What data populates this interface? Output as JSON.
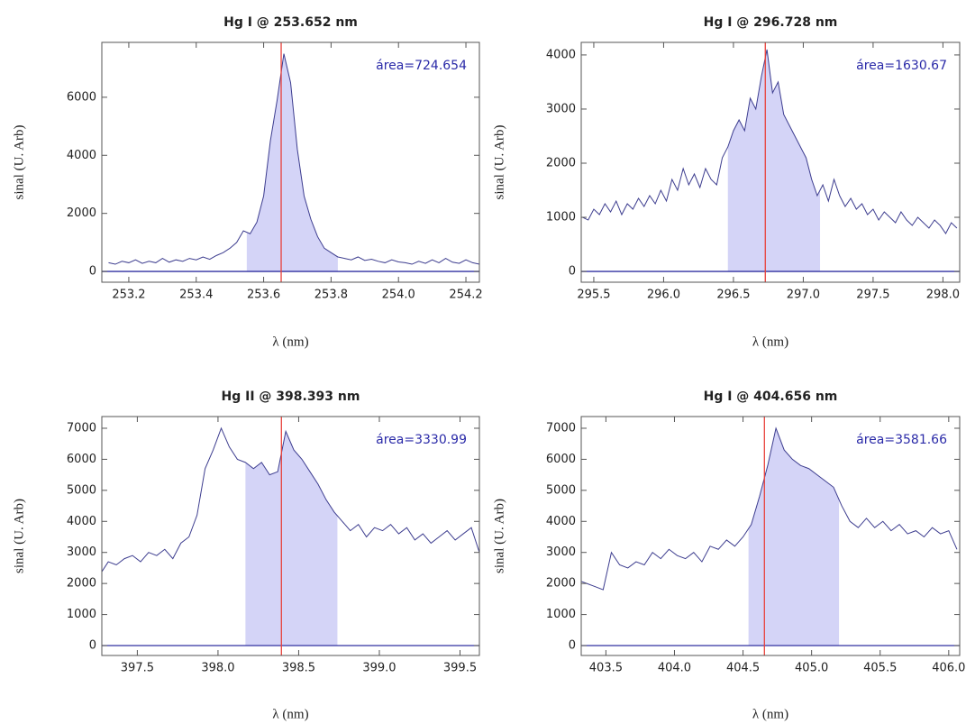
{
  "chart_data": [
    {
      "type": "line",
      "title": "Hg I @ 253.652 nm",
      "xlabel": "λ (nm)",
      "ylabel": "sinal (U. Arb)",
      "annotation": "área=724.654",
      "x": [
        253.14,
        253.16,
        253.18,
        253.2,
        253.22,
        253.24,
        253.26,
        253.28,
        253.3,
        253.32,
        253.34,
        253.36,
        253.38,
        253.4,
        253.42,
        253.44,
        253.46,
        253.48,
        253.5,
        253.52,
        253.54,
        253.56,
        253.58,
        253.6,
        253.62,
        253.64,
        253.66,
        253.68,
        253.7,
        253.72,
        253.74,
        253.76,
        253.78,
        253.8,
        253.82,
        253.84,
        253.86,
        253.88,
        253.9,
        253.92,
        253.94,
        253.96,
        253.98,
        254.0,
        254.02,
        254.04,
        254.06,
        254.08,
        254.1,
        254.12,
        254.14,
        254.16,
        254.18,
        254.2,
        254.22,
        254.24
      ],
      "values": [
        300,
        250,
        350,
        300,
        400,
        280,
        350,
        300,
        450,
        320,
        400,
        350,
        450,
        400,
        500,
        420,
        550,
        650,
        800,
        1000,
        1400,
        1300,
        1700,
        2600,
        4500,
        5900,
        7500,
        6500,
        4200,
        2600,
        1800,
        1200,
        800,
        650,
        500,
        450,
        400,
        500,
        380,
        420,
        350,
        300,
        400,
        330,
        300,
        250,
        350,
        280,
        400,
        300,
        450,
        320,
        280,
        400,
        300,
        250
      ],
      "fill_range": [
        253.55,
        253.82
      ],
      "vline": 253.652,
      "color": "#3d3d8f",
      "fill_color": "#d4d4f7",
      "vline_color": "#e8413b",
      "xlim": [
        253.12,
        254.24
      ],
      "ylim": [
        -370,
        7890
      ],
      "xticks": [
        253.2,
        253.4,
        253.6,
        253.8,
        {
          "value": 254,
          "label": "254.0"
        },
        254.2
      ],
      "yticks": [
        0,
        2000,
        4000,
        6000
      ]
    },
    {
      "type": "line",
      "title": "Hg I @ 296.728 nm",
      "xlabel": "λ (nm)",
      "ylabel": "sinal (U. Arb)",
      "annotation": "área=1630.67",
      "x": [
        295.42,
        295.46,
        295.5,
        295.54,
        295.58,
        295.62,
        295.66,
        295.7,
        295.74,
        295.78,
        295.82,
        295.86,
        295.9,
        295.94,
        295.98,
        296.02,
        296.06,
        296.1,
        296.14,
        296.18,
        296.22,
        296.26,
        296.3,
        296.34,
        296.38,
        296.42,
        296.46,
        296.5,
        296.54,
        296.58,
        296.62,
        296.66,
        296.7,
        296.74,
        296.78,
        296.82,
        296.86,
        296.9,
        296.94,
        296.98,
        297.02,
        297.06,
        297.1,
        297.14,
        297.18,
        297.22,
        297.26,
        297.3,
        297.34,
        297.38,
        297.42,
        297.46,
        297.5,
        297.54,
        297.58,
        297.62,
        297.66,
        297.7,
        297.74,
        297.78,
        297.82,
        297.86,
        297.9,
        297.94,
        297.98,
        298.02,
        298.06,
        298.1
      ],
      "values": [
        1000,
        950,
        1150,
        1050,
        1250,
        1100,
        1300,
        1050,
        1250,
        1150,
        1350,
        1200,
        1400,
        1250,
        1500,
        1300,
        1700,
        1500,
        1900,
        1600,
        1800,
        1550,
        1900,
        1700,
        1600,
        2100,
        2300,
        2600,
        2800,
        2600,
        3200,
        3000,
        3600,
        4100,
        3300,
        3500,
        2900,
        2700,
        2500,
        2300,
        2100,
        1700,
        1400,
        1600,
        1300,
        1700,
        1400,
        1200,
        1350,
        1150,
        1250,
        1050,
        1150,
        950,
        1100,
        1000,
        900,
        1100,
        950,
        850,
        1000,
        900,
        800,
        950,
        850,
        700,
        900,
        800
      ],
      "fill_range": [
        296.46,
        297.12
      ],
      "vline": 296.728,
      "color": "#3d3d8f",
      "fill_color": "#d4d4f7",
      "vline_color": "#e8413b",
      "xlim": [
        295.41,
        298.12
      ],
      "ylim": [
        -199,
        4232
      ],
      "xticks": [
        295.5,
        {
          "value": 296,
          "label": "296.0"
        },
        296.5,
        {
          "value": 297,
          "label": "297.0"
        },
        297.5,
        {
          "value": 298,
          "label": "298.0"
        }
      ],
      "yticks": [
        0,
        1000,
        2000,
        3000,
        4000
      ]
    },
    {
      "type": "line",
      "title": "Hg II @ 398.393 nm",
      "xlabel": "λ (nm)",
      "ylabel": "sinal (U. Arb)",
      "annotation": "área=3330.99",
      "x": [
        397.22,
        397.27,
        397.32,
        397.37,
        397.42,
        397.47,
        397.52,
        397.57,
        397.62,
        397.67,
        397.72,
        397.77,
        397.82,
        397.87,
        397.92,
        397.97,
        398.02,
        398.07,
        398.12,
        398.17,
        398.22,
        398.27,
        398.32,
        398.37,
        398.42,
        398.47,
        398.52,
        398.57,
        398.62,
        398.67,
        398.72,
        398.77,
        398.82,
        398.87,
        398.92,
        398.97,
        399.02,
        399.07,
        399.12,
        399.17,
        399.22,
        399.27,
        399.32,
        399.37,
        399.42,
        399.47,
        399.52,
        399.57,
        399.62
      ],
      "values": [
        2500,
        2300,
        2700,
        2600,
        2800,
        2900,
        2700,
        3000,
        2900,
        3100,
        2800,
        3300,
        3500,
        4200,
        5700,
        6300,
        7000,
        6400,
        6000,
        5900,
        5700,
        5900,
        5500,
        5600,
        6900,
        6300,
        6000,
        5600,
        5200,
        4700,
        4300,
        4000,
        3700,
        3900,
        3500,
        3800,
        3700,
        3900,
        3600,
        3800,
        3400,
        3600,
        3300,
        3500,
        3700,
        3400,
        3600,
        3800,
        3000
      ],
      "fill_range": [
        398.17,
        398.74
      ],
      "vline": 398.393,
      "color": "#3d3d8f",
      "fill_color": "#d4d4f7",
      "vline_color": "#e8413b",
      "xlim": [
        397.28,
        399.62
      ],
      "ylim": [
        -319,
        7377
      ],
      "xticks": [
        397.5,
        {
          "value": 398,
          "label": "398.0"
        },
        398.5,
        {
          "value": 399,
          "label": "399.0"
        },
        399.5
      ],
      "yticks": [
        0,
        1000,
        2000,
        3000,
        4000,
        5000,
        6000,
        7000
      ]
    },
    {
      "type": "line",
      "title": "Hg I @ 404.656 nm",
      "xlabel": "λ (nm)",
      "ylabel": "sinal (U. Arb)",
      "annotation": "área=3581.66",
      "x": [
        403.3,
        403.36,
        403.42,
        403.48,
        403.54,
        403.6,
        403.66,
        403.72,
        403.78,
        403.84,
        403.9,
        403.96,
        404.02,
        404.08,
        404.14,
        404.2,
        404.26,
        404.32,
        404.38,
        404.44,
        404.5,
        404.56,
        404.62,
        404.68,
        404.74,
        404.8,
        404.86,
        404.92,
        404.98,
        405.04,
        405.1,
        405.16,
        405.22,
        405.28,
        405.34,
        405.4,
        405.46,
        405.52,
        405.58,
        405.64,
        405.7,
        405.76,
        405.82,
        405.88,
        405.94,
        406.0,
        406.06
      ],
      "values": [
        2100,
        2000,
        1900,
        1800,
        3000,
        2600,
        2500,
        2700,
        2600,
        3000,
        2800,
        3100,
        2900,
        2800,
        3000,
        2700,
        3200,
        3100,
        3400,
        3200,
        3500,
        3900,
        4800,
        5800,
        7000,
        6300,
        6000,
        5800,
        5700,
        5500,
        5300,
        5100,
        4500,
        4000,
        3800,
        4100,
        3800,
        4000,
        3700,
        3900,
        3600,
        3700,
        3500,
        3800,
        3600,
        3700,
        3100
      ],
      "fill_range": [
        404.54,
        405.2
      ],
      "vline": 404.656,
      "color": "#3d3d8f",
      "fill_color": "#d4d4f7",
      "vline_color": "#e8413b",
      "xlim": [
        403.32,
        406.08
      ],
      "ylim": [
        -319,
        7377
      ],
      "xticks": [
        403.5,
        {
          "value": 404,
          "label": "404.0"
        },
        404.5,
        {
          "value": 405,
          "label": "405.0"
        },
        405.5,
        {
          "value": 406,
          "label": "406.0"
        }
      ],
      "yticks": [
        0,
        1000,
        2000,
        3000,
        4000,
        5000,
        6000,
        7000
      ]
    }
  ]
}
